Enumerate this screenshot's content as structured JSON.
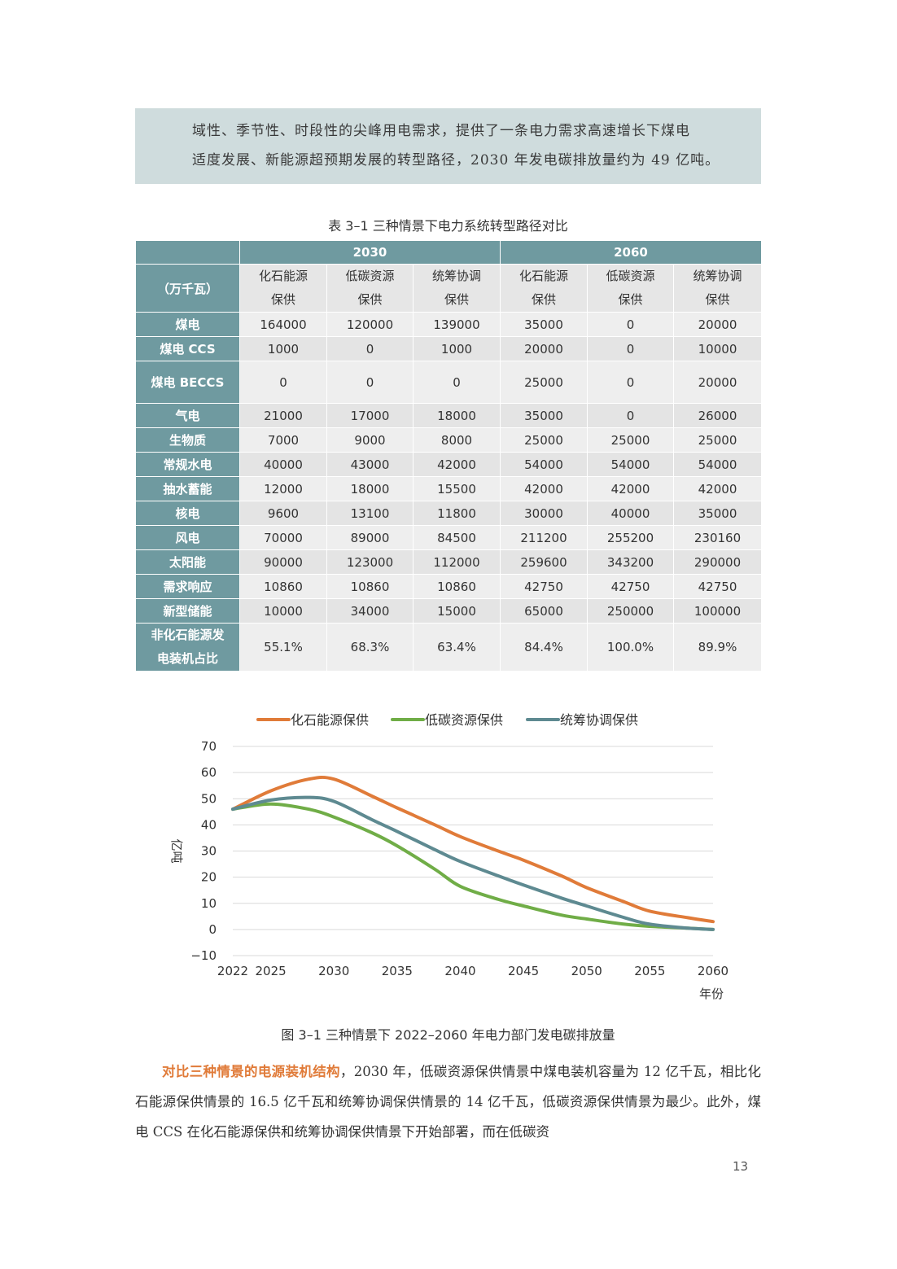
{
  "callout": {
    "line1": "域性、季节性、时段性的尖峰用电需求，提供了一条电力需求高速增长下煤电",
    "line2": "适度发展、新能源超预期发展的转型路径，2030 年发电碳排放量约为 49 亿吨。"
  },
  "table": {
    "caption": "表 3–1 三种情景下电力系统转型路径对比",
    "unit_label": "（万千瓦）",
    "years": [
      "2030",
      "2060"
    ],
    "scenarios": [
      {
        "line1": "化石能源",
        "line2": "保供"
      },
      {
        "line1": "低碳资源",
        "line2": "保供"
      },
      {
        "line1": "统筹协调",
        "line2": "保供"
      }
    ],
    "rows": [
      {
        "label": "煤电",
        "values": [
          "164000",
          "120000",
          "139000",
          "35000",
          "0",
          "20000"
        ]
      },
      {
        "label": "煤电 CCS",
        "values": [
          "1000",
          "0",
          "1000",
          "20000",
          "0",
          "10000"
        ]
      },
      {
        "label": "煤电 BECCS",
        "values": [
          "0",
          "0",
          "0",
          "25000",
          "0",
          "20000"
        ]
      },
      {
        "label": "气电",
        "values": [
          "21000",
          "17000",
          "18000",
          "35000",
          "0",
          "26000"
        ]
      },
      {
        "label": "生物质",
        "values": [
          "7000",
          "9000",
          "8000",
          "25000",
          "25000",
          "25000"
        ]
      },
      {
        "label": "常规水电",
        "values": [
          "40000",
          "43000",
          "42000",
          "54000",
          "54000",
          "54000"
        ]
      },
      {
        "label": "抽水蓄能",
        "values": [
          "12000",
          "18000",
          "15500",
          "42000",
          "42000",
          "42000"
        ]
      },
      {
        "label": "核电",
        "values": [
          "9600",
          "13100",
          "11800",
          "30000",
          "40000",
          "35000"
        ]
      },
      {
        "label": "风电",
        "values": [
          "70000",
          "89000",
          "84500",
          "211200",
          "255200",
          "230160"
        ]
      },
      {
        "label": "太阳能",
        "values": [
          "90000",
          "123000",
          "112000",
          "259600",
          "343200",
          "290000"
        ]
      },
      {
        "label": "需求响应",
        "values": [
          "10860",
          "10860",
          "10860",
          "42750",
          "42750",
          "42750"
        ]
      },
      {
        "label": "新型储能",
        "values": [
          "10000",
          "34000",
          "15000",
          "65000",
          "250000",
          "100000"
        ]
      }
    ],
    "ratio_row": {
      "label_line1": "非化石能源发",
      "label_line2": "电装机占比",
      "values": [
        "55.1%",
        "68.3%",
        "63.4%",
        "84.4%",
        "100.0%",
        "89.9%"
      ]
    }
  },
  "chart_data": {
    "type": "line",
    "title": "",
    "xlabel": "年份",
    "ylabel": "亿吨",
    "xlim": [
      2022,
      2060
    ],
    "ylim": [
      -10,
      70
    ],
    "x_ticks": [
      2022,
      2025,
      2030,
      2035,
      2040,
      2045,
      2050,
      2055,
      2060
    ],
    "y_ticks": [
      -10,
      0,
      10,
      20,
      30,
      40,
      50,
      60,
      70
    ],
    "grid": true,
    "legend_position": "top",
    "x": [
      2022,
      2025,
      2028,
      2030,
      2033,
      2035,
      2038,
      2040,
      2043,
      2045,
      2048,
      2050,
      2053,
      2055,
      2058,
      2060
    ],
    "series": [
      {
        "name": "化石能源保供",
        "color": "#e07b39",
        "values": [
          46,
          53,
          57.5,
          57.5,
          51,
          46.5,
          40,
          35.5,
          30,
          26.5,
          20.5,
          16,
          10.5,
          7,
          4.5,
          3
        ]
      },
      {
        "name": "低碳资源保供",
        "color": "#70ad47",
        "values": [
          46,
          48,
          46,
          43,
          37,
          32,
          23,
          16.5,
          11.5,
          9,
          5.5,
          4,
          2,
          1.2,
          0.5,
          0
        ]
      },
      {
        "name": "统筹协调保供",
        "color": "#5e8a91",
        "values": [
          46,
          49.5,
          50.5,
          49,
          42,
          37.5,
          30.5,
          26,
          20.5,
          17,
          12,
          9,
          4.5,
          2,
          0.5,
          0
        ]
      }
    ]
  },
  "figure": {
    "caption": "图 3–1  三种情景下 2022–2060 年电力部门发电碳排放量"
  },
  "body": {
    "lead": "对比三种情景的电源装机结构",
    "text": "，2030 年，低碳资源保供情景中煤电装机容量为 12 亿千瓦，相比化石能源保供情景的 16.5 亿千瓦和统筹协调保供情景的 14 亿千瓦，低碳资源保供情景为最少。此外，煤电 CCS 在化石能源保供和统筹协调保供情景下开始部署，而在低碳资"
  },
  "page_number": "13"
}
